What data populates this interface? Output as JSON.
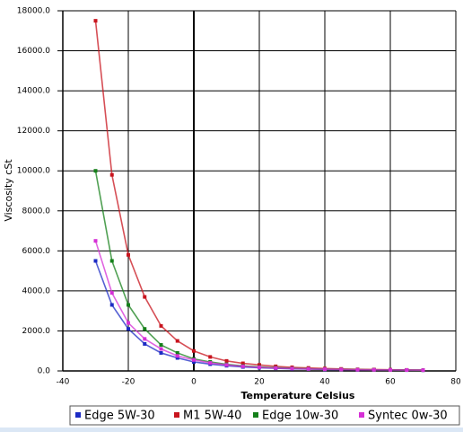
{
  "chart_data": {
    "type": "line",
    "x_label": "Temperature Celsius",
    "y_label": "Viscosity cSt",
    "x": [
      -30,
      -25,
      -20,
      -15,
      -10,
      -5,
      0,
      5,
      10,
      15,
      20,
      25,
      30,
      35,
      40,
      45,
      50,
      55,
      60,
      65,
      70
    ],
    "series": [
      {
        "name": "Edge 5W-30",
        "color": "#1c2bc4",
        "values": [
          5500,
          3300,
          2100,
          1350,
          900,
          650,
          450,
          340,
          260,
          200,
          160,
          130,
          105,
          90,
          75,
          65,
          55,
          50,
          45,
          40,
          35
        ]
      },
      {
        "name": "M1 5W-40",
        "color": "#c8141e",
        "values": [
          17500,
          9800,
          5800,
          3700,
          2250,
          1500,
          1000,
          700,
          500,
          380,
          300,
          230,
          180,
          150,
          120,
          100,
          80,
          70,
          60,
          50,
          45
        ]
      },
      {
        "name": "Edge 10w-30",
        "color": "#15801a",
        "values": [
          10000,
          5500,
          3300,
          2100,
          1300,
          900,
          600,
          450,
          330,
          250,
          200,
          160,
          130,
          105,
          90,
          75,
          65,
          55,
          50,
          45,
          40
        ]
      },
      {
        "name": "Syntec 0w-30",
        "color": "#d630d6",
        "values": [
          6500,
          3900,
          2400,
          1600,
          1100,
          750,
          550,
          400,
          300,
          230,
          180,
          145,
          120,
          100,
          85,
          70,
          60,
          55,
          50,
          45,
          40
        ]
      }
    ],
    "xlim": [
      -40,
      80
    ],
    "xticks": [
      -40,
      -20,
      0,
      20,
      40,
      60,
      80
    ],
    "ylim": [
      0,
      18000
    ],
    "yticks": [
      {
        "value": 0,
        "label": "0.0"
      },
      {
        "value": 2000,
        "label": "2000.0"
      },
      {
        "value": 4000,
        "label": "4000.0"
      },
      {
        "value": 6000,
        "label": "6000.0"
      },
      {
        "value": 8000,
        "label": "8000.0"
      },
      {
        "value": 10000,
        "label": "10000.0"
      },
      {
        "value": 12000,
        "label": "12000.0"
      },
      {
        "value": 14000,
        "label": "14000.0"
      },
      {
        "value": 16000,
        "label": "16000.0"
      },
      {
        "value": 18000,
        "label": "18000.0"
      }
    ],
    "grid": true,
    "legend": "bottom"
  }
}
